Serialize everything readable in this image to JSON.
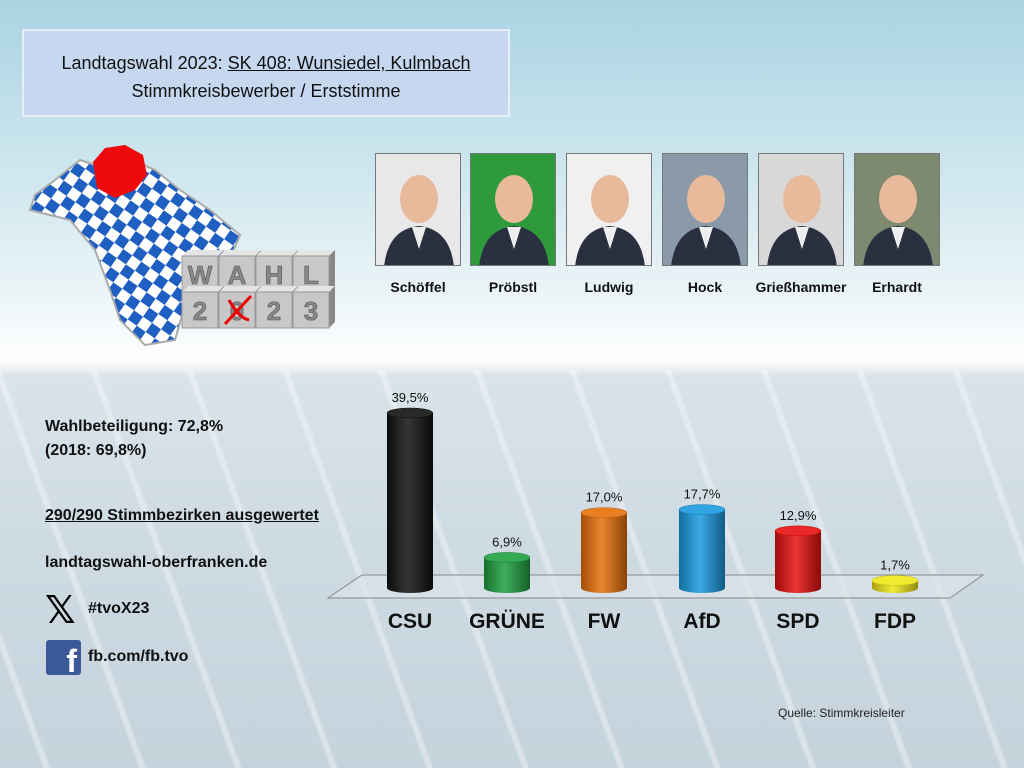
{
  "header": {
    "title_prefix": "Landtagswahl 2023: ",
    "title_district": "SK 408: Wunsiedel, Kulmbach",
    "subtitle": "Stimmkreisbewerber / Erststimme"
  },
  "logo": {
    "letters_top": [
      "W",
      "A",
      "H",
      "L"
    ],
    "letters_bottom": [
      "2",
      "0",
      "2",
      "3"
    ]
  },
  "candidates": [
    {
      "name": "Schöffel",
      "bg": "#e8e8e8"
    },
    {
      "name": "Pröbstl",
      "bg": "#2f9a3c"
    },
    {
      "name": "Ludwig",
      "bg": "#f0f0f0"
    },
    {
      "name": "Hock",
      "bg": "#8a9aa8"
    },
    {
      "name": "Grießhammer",
      "bg": "#d8d8d8"
    },
    {
      "name": "Erhardt",
      "bg": "#7d8a70"
    }
  ],
  "info": {
    "turnout": "Wahlbeteiligung: 72,8%",
    "turnout_prev": "(2018: 69,8%)",
    "counted": "290/290 Stimmbezirken ausgewertet",
    "website": "landtagswahl-oberfranken.de",
    "x_handle": "#tvoX23",
    "facebook": "fb.com/fb.tvo"
  },
  "source": "Quelle: Stimmkreisleiter",
  "chart_data": {
    "type": "bar",
    "style": "3d-cylinder",
    "categories": [
      "CSU",
      "GRÜNE",
      "FW",
      "AfD",
      "SPD",
      "FDP"
    ],
    "values": [
      39.5,
      6.9,
      17.0,
      17.7,
      12.9,
      1.7
    ],
    "labels": [
      "39,5%",
      "6,9%",
      "17,0%",
      "17,7%",
      "12,9%",
      "1,7%"
    ],
    "colors": [
      "#111111",
      "#1fa040",
      "#e8700a",
      "#1a9be0",
      "#e81010",
      "#f0e818"
    ],
    "grid": false
  }
}
